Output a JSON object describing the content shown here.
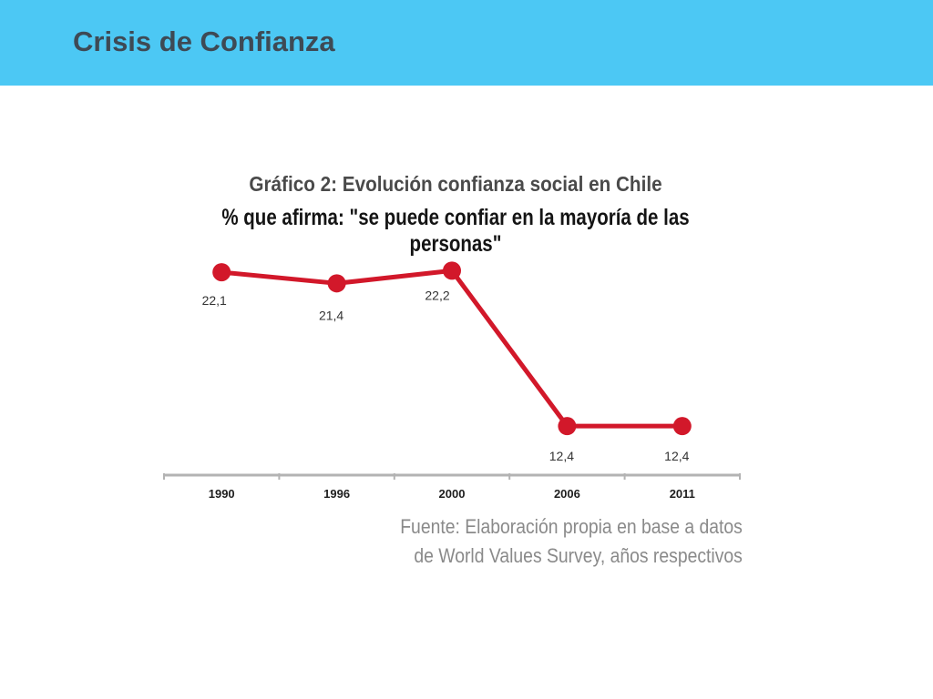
{
  "slide": {
    "title": "Crisis de Confianza",
    "header_color": "#4cc8f4"
  },
  "chart_data": {
    "type": "line",
    "title": "Gráfico 2: Evolución confianza social en Chile",
    "subtitle": "% que afirma: \"se puede confiar en la mayoría de las personas\"",
    "categories": [
      "1990",
      "1996",
      "2000",
      "2006",
      "2011"
    ],
    "series": [
      {
        "values": [
          22.1,
          21.4,
          22.2,
          12.4,
          12.4
        ],
        "labels": [
          "22,1",
          "21,4",
          "22,2",
          "12,4",
          "12,4"
        ],
        "color": "#d2182a"
      }
    ],
    "ylim": [
      10,
      24
    ],
    "grid": false,
    "legend": "none"
  },
  "source": {
    "line1": "Fuente: Elaboración propia en base a datos",
    "line2": "de World Values Survey, años respectivos"
  }
}
